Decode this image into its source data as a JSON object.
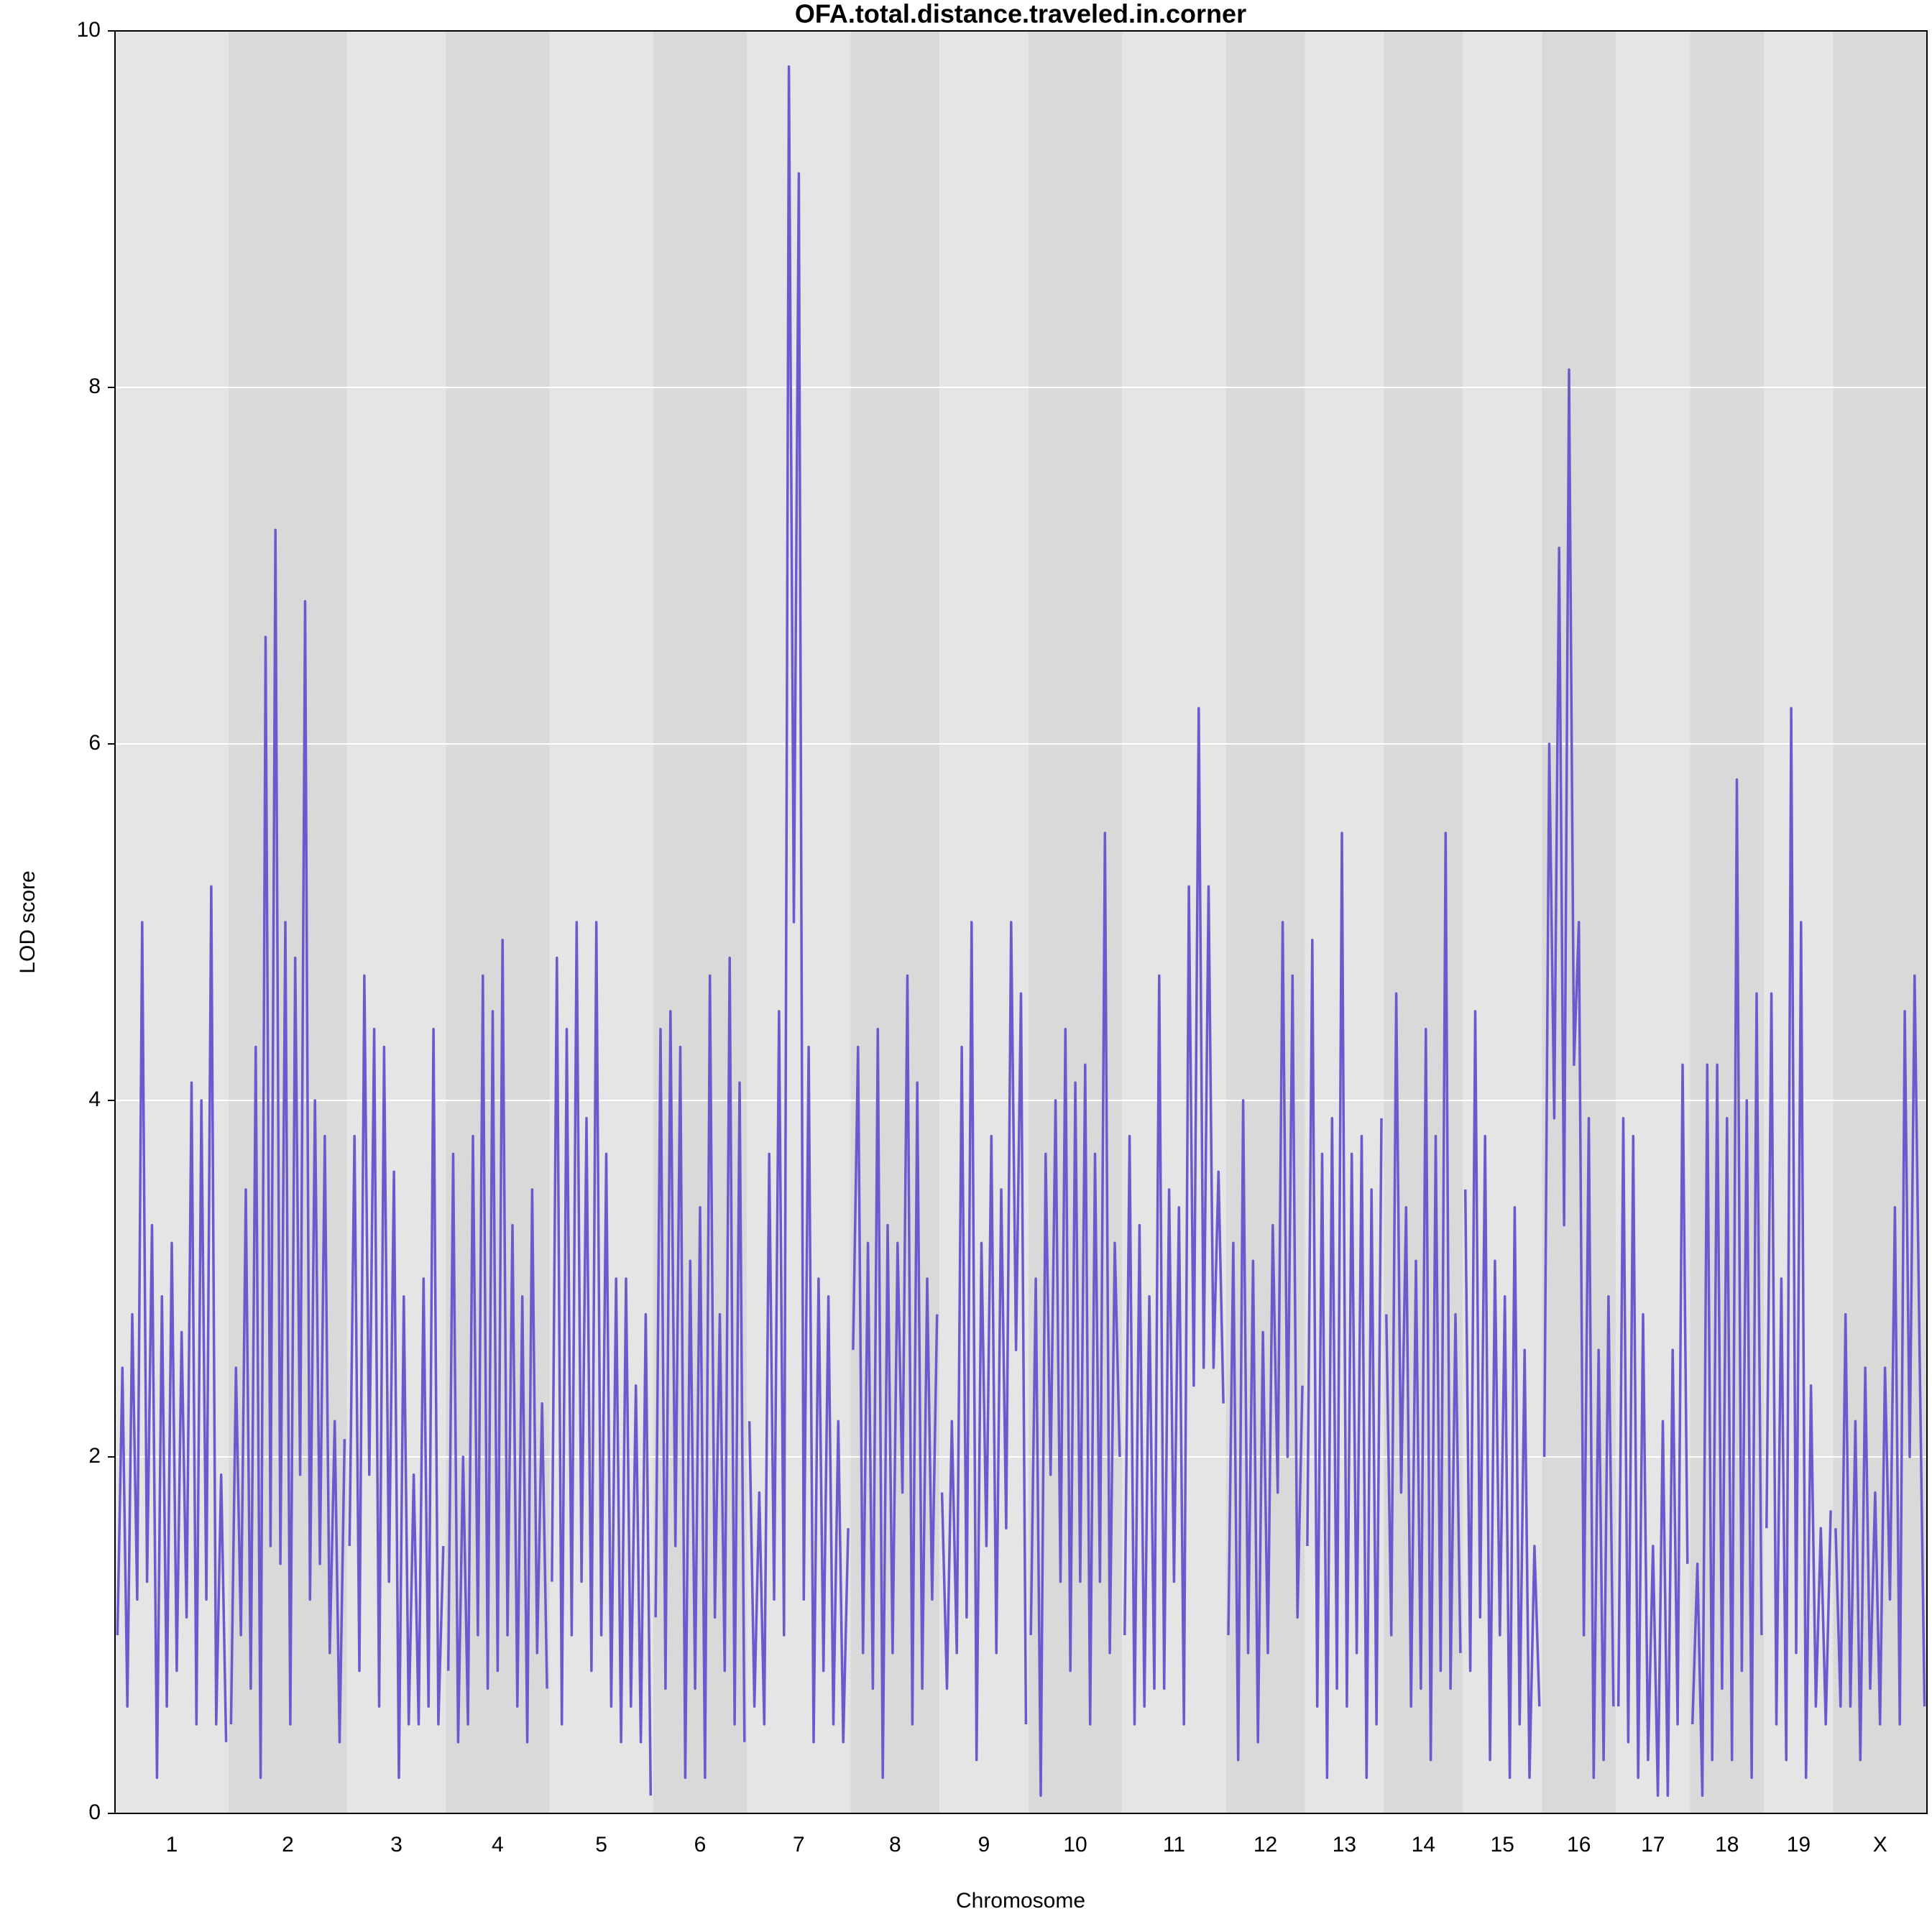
{
  "chart_data": {
    "type": "line",
    "title": "OFA.total.distance.traveled.in.corner",
    "xlabel": "Chromosome",
    "ylabel": "LOD score",
    "ylim": [
      0,
      10
    ],
    "yticks": [
      0,
      2,
      4,
      6,
      8,
      10
    ],
    "grid": true,
    "color": "#6a5acd",
    "band_colors": [
      "#e5e5e5",
      "#d9d9d9"
    ],
    "chromosomes": [
      {
        "name": "1",
        "values": [
          1.0,
          2.5,
          0.6,
          2.8,
          1.2,
          5.0,
          1.3,
          3.3,
          0.2,
          2.9,
          0.6,
          3.2,
          0.8,
          2.7,
          1.1,
          4.1,
          0.5,
          4.0,
          1.2,
          5.2,
          0.5,
          1.9,
          0.4
        ]
      },
      {
        "name": "2",
        "values": [
          0.5,
          2.5,
          1.0,
          3.5,
          0.7,
          4.3,
          0.2,
          6.6,
          1.5,
          7.2,
          1.4,
          5.0,
          0.5,
          4.8,
          1.9,
          6.8,
          1.2,
          4.0,
          1.4,
          3.8,
          0.9,
          2.2,
          0.4,
          2.1
        ]
      },
      {
        "name": "3",
        "values": [
          1.5,
          3.8,
          0.8,
          4.7,
          1.9,
          4.4,
          0.6,
          4.3,
          1.3,
          3.6,
          0.2,
          2.9,
          0.5,
          1.9,
          0.5,
          3.0,
          0.6,
          4.4,
          0.5,
          1.5
        ]
      },
      {
        "name": "4",
        "values": [
          0.8,
          3.7,
          0.4,
          2.0,
          0.5,
          3.8,
          1.0,
          4.7,
          0.7,
          4.5,
          0.8,
          4.9,
          1.0,
          3.3,
          0.6,
          2.9,
          0.4,
          3.5,
          0.9,
          2.3,
          0.7
        ]
      },
      {
        "name": "5",
        "values": [
          1.3,
          4.8,
          0.5,
          4.4,
          1.0,
          5.0,
          1.3,
          3.9,
          0.8,
          5.0,
          1.0,
          3.7,
          0.6,
          3.0,
          0.4,
          3.0,
          0.6,
          2.4,
          0.4,
          2.8,
          0.1
        ]
      },
      {
        "name": "6",
        "values": [
          1.1,
          4.4,
          0.7,
          4.5,
          1.5,
          4.3,
          0.2,
          3.1,
          0.7,
          3.4,
          0.2,
          4.7,
          1.1,
          2.8,
          0.8,
          4.8,
          0.5,
          4.1,
          0.4
        ]
      },
      {
        "name": "7",
        "values": [
          2.2,
          0.6,
          1.8,
          0.5,
          3.7,
          1.2,
          4.5,
          1.0,
          9.8,
          5.0,
          9.2,
          1.2,
          4.3,
          0.4,
          3.0,
          0.8,
          2.9,
          0.5,
          2.2,
          0.4,
          1.6
        ]
      },
      {
        "name": "8",
        "values": [
          2.6,
          4.3,
          0.9,
          3.2,
          0.7,
          4.4,
          0.2,
          3.3,
          0.9,
          3.2,
          1.8,
          4.7,
          0.5,
          4.1,
          0.7,
          3.0,
          1.2,
          2.8
        ]
      },
      {
        "name": "9",
        "values": [
          1.8,
          0.7,
          2.2,
          0.9,
          4.3,
          1.1,
          5.0,
          0.3,
          3.2,
          1.5,
          3.8,
          0.9,
          3.5,
          1.6,
          5.0,
          2.6,
          4.6,
          0.5
        ]
      },
      {
        "name": "10",
        "values": [
          1.0,
          3.0,
          0.1,
          3.7,
          1.9,
          4.0,
          1.3,
          4.4,
          0.8,
          4.1,
          1.3,
          4.2,
          0.5,
          3.7,
          1.3,
          5.5,
          0.9,
          3.2,
          2.0
        ]
      },
      {
        "name": "11",
        "values": [
          1.0,
          3.8,
          0.5,
          3.3,
          0.6,
          2.9,
          0.7,
          4.7,
          0.7,
          3.5,
          1.3,
          3.4,
          0.5,
          5.2,
          2.4,
          6.2,
          2.5,
          5.2,
          2.5,
          3.6,
          2.3
        ]
      },
      {
        "name": "12",
        "values": [
          1.0,
          3.2,
          0.3,
          4.0,
          0.9,
          3.1,
          0.4,
          2.7,
          0.9,
          3.3,
          1.8,
          5.0,
          2.0,
          4.7,
          1.1,
          2.4
        ]
      },
      {
        "name": "13",
        "values": [
          1.5,
          4.9,
          0.6,
          3.7,
          0.2,
          3.9,
          0.7,
          5.5,
          0.6,
          3.7,
          0.9,
          3.8,
          0.2,
          3.5,
          0.5,
          3.9
        ]
      },
      {
        "name": "14",
        "values": [
          2.8,
          1.0,
          4.6,
          1.8,
          3.4,
          0.6,
          3.1,
          0.7,
          4.4,
          0.3,
          3.8,
          0.8,
          5.5,
          0.7,
          2.8,
          0.9
        ]
      },
      {
        "name": "15",
        "values": [
          3.5,
          0.8,
          4.5,
          1.1,
          3.8,
          0.3,
          3.1,
          1.0,
          2.9,
          0.2,
          3.4,
          0.5,
          2.6,
          0.2,
          1.5,
          0.6
        ]
      },
      {
        "name": "16",
        "values": [
          2.0,
          6.0,
          3.9,
          7.1,
          3.3,
          8.1,
          4.2,
          5.0,
          1.0,
          3.9,
          0.2,
          2.6,
          0.3,
          2.9,
          0.6
        ]
      },
      {
        "name": "17",
        "values": [
          0.6,
          3.9,
          0.4,
          3.8,
          0.2,
          2.8,
          0.3,
          1.5,
          0.1,
          2.2,
          0.1,
          2.6,
          0.5,
          4.2,
          1.4
        ]
      },
      {
        "name": "18",
        "values": [
          0.5,
          1.4,
          0.1,
          4.2,
          0.3,
          4.2,
          0.7,
          3.9,
          0.3,
          5.8,
          0.8,
          4.0,
          0.2,
          4.6,
          1.0
        ]
      },
      {
        "name": "19",
        "values": [
          1.6,
          4.6,
          0.5,
          3.0,
          0.3,
          6.2,
          0.9,
          5.0,
          0.2,
          2.4,
          0.6,
          1.6,
          0.5,
          1.7
        ]
      },
      {
        "name": "X",
        "values": [
          1.6,
          0.6,
          2.8,
          0.6,
          2.2,
          0.3,
          2.5,
          0.7,
          1.8,
          0.5,
          2.5,
          1.2,
          3.4,
          0.5,
          4.5,
          2.0,
          4.7,
          2.6,
          0.6
        ]
      }
    ]
  }
}
